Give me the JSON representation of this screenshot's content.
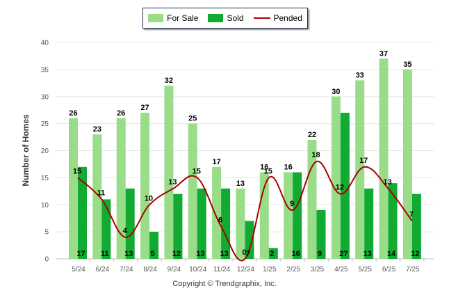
{
  "chart_data": {
    "type": "bar",
    "categories": [
      "5/24",
      "6/24",
      "7/24",
      "8/24",
      "9/24",
      "10/24",
      "11/24",
      "12/24",
      "1/25",
      "2/25",
      "3/25",
      "4/25",
      "5/25",
      "6/25",
      "7/25"
    ],
    "series": [
      {
        "name": "For Sale",
        "type": "bar",
        "color": "#99dd88",
        "values": [
          26,
          23,
          26,
          27,
          32,
          25,
          17,
          13,
          16,
          16,
          22,
          30,
          33,
          37,
          35
        ]
      },
      {
        "name": "Sold",
        "type": "bar",
        "color": "#11aa33",
        "values": [
          17,
          11,
          13,
          5,
          12,
          13,
          13,
          7,
          2,
          16,
          9,
          27,
          13,
          14,
          12
        ]
      },
      {
        "name": "Pended",
        "type": "line",
        "color": "#aa0000",
        "values": [
          15,
          11,
          4,
          10,
          13,
          15,
          6,
          0,
          15,
          9,
          18,
          12,
          17,
          13,
          7
        ]
      }
    ],
    "ylabel": "Number of Homes",
    "xlabel": "",
    "ylim": [
      0,
      40
    ],
    "yticks": [
      0,
      5,
      10,
      15,
      20,
      25,
      30,
      35,
      40
    ],
    "grid": true,
    "legend_position": "top-center"
  },
  "footer": {
    "copyright": "Copyright © Trendgraphix, Inc."
  }
}
